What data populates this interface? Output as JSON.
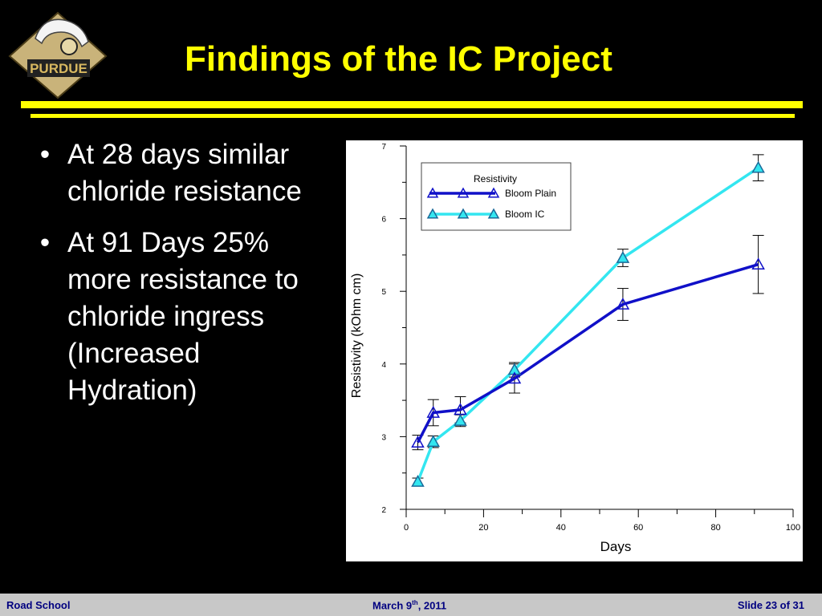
{
  "slide": {
    "title": "Findings of the IC Project",
    "logo_text": "PURDUE",
    "bullets": [
      "At 28 days similar chloride resistance",
      "At 91 Days 25% more resistance to chloride ingress (Increased Hydration)"
    ],
    "colors": {
      "background": "#000000",
      "title": "#ffff00",
      "rule": "#ffff00",
      "footer_bg": "#c8c8c8",
      "footer_text": "#000080"
    }
  },
  "footer": {
    "left": "Road School",
    "date_prefix": "March 9",
    "date_sup": "th",
    "date_suffix": ", 2011",
    "right": "Slide 23 of 31"
  },
  "chart_data": {
    "type": "line",
    "xlabel": "Days",
    "ylabel": "Resistivity (kOhm cm)",
    "xlim": [
      0,
      100
    ],
    "ylim": [
      2,
      7
    ],
    "xticks": [
      0,
      20,
      40,
      60,
      80,
      100
    ],
    "yticks": [
      2,
      3,
      4,
      5,
      6,
      7
    ],
    "legend": {
      "title": "Resistivity",
      "position": "top-left"
    },
    "grid": false,
    "series": [
      {
        "name": "Bloom Plain",
        "color": "#1010c8",
        "marker": "triangle",
        "x": [
          3,
          7,
          14,
          28,
          56,
          91
        ],
        "y": [
          2.92,
          3.33,
          3.37,
          3.8,
          4.82,
          5.37
        ],
        "err": [
          0.1,
          0.18,
          0.18,
          0.2,
          0.22,
          0.4
        ]
      },
      {
        "name": "Bloom IC",
        "color": "#33e6f0",
        "marker": "triangle",
        "x": [
          3,
          7,
          14,
          28,
          56,
          91
        ],
        "y": [
          2.38,
          2.93,
          3.22,
          3.92,
          5.46,
          6.7
        ],
        "err": [
          0.05,
          0.08,
          0.08,
          0.1,
          0.12,
          0.18
        ]
      }
    ]
  }
}
